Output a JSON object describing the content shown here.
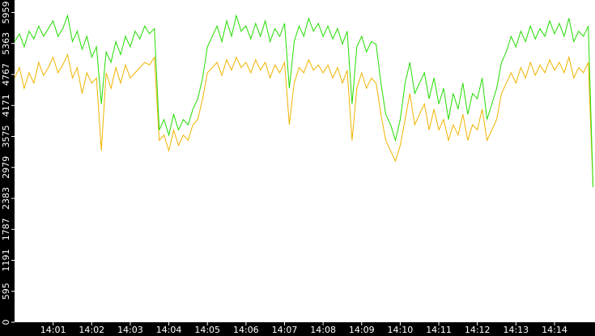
{
  "chart_data": {
    "type": "line",
    "x": [
      0,
      0.125,
      0.25,
      0.375,
      0.5,
      0.625,
      0.75,
      0.875,
      1,
      1.125,
      1.25,
      1.375,
      1.5,
      1.625,
      1.75,
      1.875,
      2,
      2.125,
      2.25,
      2.375,
      2.5,
      2.625,
      2.75,
      2.875,
      3,
      3.125,
      3.25,
      3.375,
      3.5,
      3.625,
      3.75,
      3.875,
      4,
      4.125,
      4.25,
      4.375,
      4.5,
      4.625,
      4.75,
      4.875,
      5,
      5.125,
      5.25,
      5.375,
      5.5,
      5.625,
      5.75,
      5.875,
      6,
      6.125,
      6.25,
      6.375,
      6.5,
      6.625,
      6.75,
      6.875,
      7,
      7.125,
      7.25,
      7.375,
      7.5,
      7.625,
      7.75,
      7.875,
      8,
      8.125,
      8.25,
      8.375,
      8.5,
      8.625,
      8.75,
      8.875,
      9,
      9.125,
      9.25,
      9.375,
      9.5,
      9.625,
      9.75,
      9.875,
      10,
      10.125,
      10.25,
      10.375,
      10.5,
      10.625,
      10.75,
      10.875,
      11,
      11.125,
      11.25,
      11.375,
      11.5,
      11.625,
      11.75,
      11.875,
      12,
      12.125,
      12.25,
      12.375,
      12.5,
      12.625,
      12.75,
      12.875,
      13,
      13.125,
      13.25,
      13.375,
      13.5,
      13.625,
      13.75,
      13.875,
      14,
      14.125,
      14.25,
      14.375,
      14.5,
      14.625,
      14.75,
      14.875,
      15
    ],
    "series": [
      {
        "color": "#22dd00",
        "values": [
          5400,
          5550,
          5300,
          5600,
          5450,
          5700,
          5500,
          5650,
          5800,
          5500,
          5650,
          5900,
          5400,
          5600,
          5250,
          5500,
          5100,
          5300,
          4200,
          5200,
          5000,
          5400,
          5150,
          5500,
          5300,
          5600,
          5450,
          5700,
          5550,
          5650,
          3700,
          3900,
          3600,
          4000,
          3700,
          3900,
          3800,
          4100,
          4300,
          4700,
          5300,
          5500,
          5700,
          5400,
          5800,
          5500,
          5900,
          5600,
          5700,
          5450,
          5750,
          5500,
          5800,
          5400,
          5650,
          5500,
          5750,
          4500,
          5400,
          5700,
          5500,
          5850,
          5600,
          5750,
          5500,
          5700,
          5450,
          5650,
          5350,
          5600,
          4200,
          5300,
          5500,
          5200,
          5400,
          5350,
          4600,
          4000,
          3800,
          3500,
          3900,
          4600,
          5000,
          4400,
          4600,
          4800,
          4300,
          4700,
          4200,
          4500,
          3900,
          4400,
          4100,
          4600,
          4000,
          4400,
          4300,
          4700,
          3900,
          4200,
          4500,
          5000,
          5200,
          5500,
          5300,
          5600,
          5400,
          5700,
          5450,
          5650,
          5500,
          5800,
          5550,
          5750,
          5500,
          5850,
          5400,
          5600,
          5500,
          5700,
          2600
        ]
      },
      {
        "color": "#f0b400",
        "values": [
          4700,
          4900,
          4500,
          4800,
          4600,
          5000,
          4750,
          4900,
          5100,
          4800,
          4950,
          5150,
          4700,
          4900,
          4400,
          4800,
          4600,
          4700,
          3300,
          4800,
          4500,
          4900,
          4600,
          4950,
          4700,
          4800,
          4900,
          5000,
          4950,
          5100,
          3500,
          3600,
          3300,
          3700,
          3400,
          3600,
          3500,
          3800,
          3900,
          4300,
          4800,
          4900,
          5000,
          4750,
          5050,
          4850,
          5100,
          4900,
          5000,
          4800,
          5050,
          4850,
          5000,
          4700,
          4950,
          4800,
          5000,
          3800,
          4600,
          4900,
          4800,
          5050,
          4850,
          4950,
          4800,
          4950,
          4700,
          4900,
          4600,
          4850,
          3500,
          4500,
          4800,
          4500,
          4700,
          4600,
          4000,
          3500,
          3300,
          3100,
          3400,
          3900,
          4400,
          3800,
          4000,
          4200,
          3700,
          4100,
          3700,
          3900,
          3500,
          3800,
          3600,
          4000,
          3500,
          3800,
          3700,
          4100,
          3500,
          3700,
          3900,
          4400,
          4600,
          4800,
          4600,
          4900,
          4700,
          5000,
          4750,
          4950,
          4800,
          5050,
          4850,
          5000,
          4800,
          5100,
          4700,
          4900,
          4800,
          5000,
          2600
        ]
      }
    ],
    "xlim": [
      0,
      15.05
    ],
    "xticks": [
      {
        "value": 1,
        "label": "14:01"
      },
      {
        "value": 2,
        "label": "14:02"
      },
      {
        "value": 3,
        "label": "14:03"
      },
      {
        "value": 4,
        "label": "14:04"
      },
      {
        "value": 5,
        "label": "14:05"
      },
      {
        "value": 6,
        "label": "14:06"
      },
      {
        "value": 7,
        "label": "14:07"
      },
      {
        "value": 8,
        "label": "14:08"
      },
      {
        "value": 9,
        "label": "14:09"
      },
      {
        "value": 10,
        "label": "14:10"
      },
      {
        "value": 11,
        "label": "14:11"
      },
      {
        "value": 12,
        "label": "14:12"
      },
      {
        "value": 13,
        "label": "14:13"
      },
      {
        "value": 14,
        "label": "14:14"
      }
    ],
    "ylim": [
      0,
      6200
    ],
    "yticks": [
      0,
      595,
      1191,
      1787,
      2383,
      2979,
      3575,
      4171,
      4767,
      5363,
      5959
    ]
  }
}
